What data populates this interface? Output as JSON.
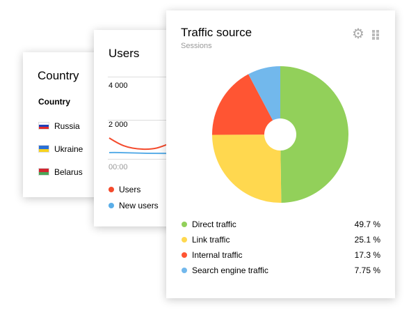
{
  "country": {
    "title": "Country",
    "header": "Country",
    "rows": [
      {
        "name": "Russia",
        "flag": [
          "#ffffff",
          "#1f3fb8",
          "#e32b2b"
        ]
      },
      {
        "name": "Ukraine",
        "flag": [
          "#2a6fd6",
          "#f7d21e"
        ]
      },
      {
        "name": "Belarus",
        "flag": [
          "#d22630",
          "#4aa657"
        ]
      }
    ]
  },
  "users": {
    "title": "Users",
    "ticks": [
      "4 000",
      "2 000"
    ],
    "xtick": "00:00",
    "legend": [
      {
        "label": "Users",
        "color": "#f44a2c"
      },
      {
        "label": "New users",
        "color": "#5aaee8"
      }
    ]
  },
  "traffic": {
    "title": "Traffic source",
    "subtitle": "Sessions",
    "icons": [
      "gear-icon",
      "drag-handle-icon"
    ],
    "chart_data": {
      "type": "pie",
      "donut": true,
      "categories": [
        "Direct traffic",
        "Link traffic",
        "Internal traffic",
        "Search engine traffic"
      ],
      "values": [
        49.7,
        25.1,
        17.3,
        7.75
      ],
      "labels": [
        "49.7 %",
        "25.1 %",
        "17.3 %",
        "7.75 %"
      ],
      "colors": [
        "#92d05a",
        "#ffd84f",
        "#ff5533",
        "#72b8ec"
      ]
    }
  }
}
